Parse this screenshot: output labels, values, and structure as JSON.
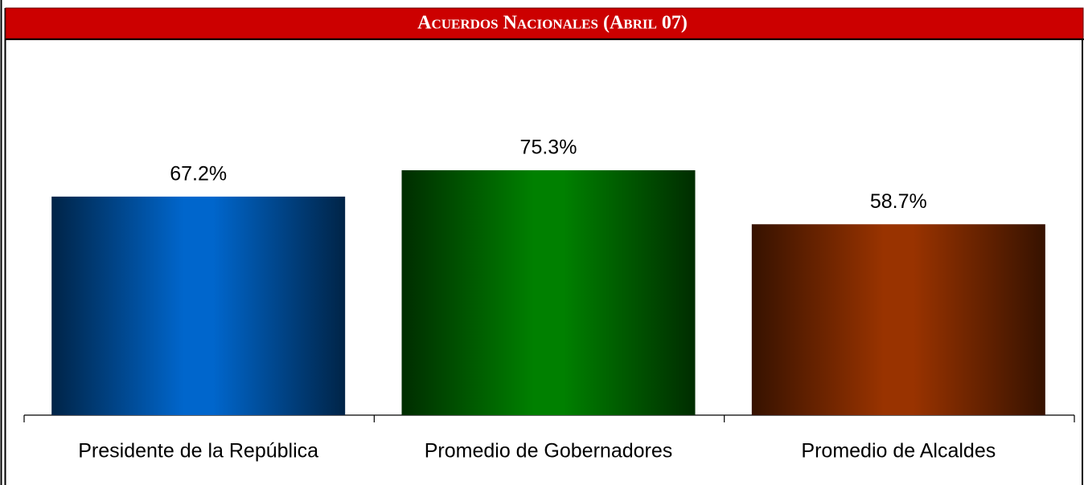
{
  "chart_data": {
    "type": "bar",
    "title": "Acuerdos Nacionales (Abril 07)",
    "categories": [
      "Presidente de la República",
      "Promedio de Gobernadores",
      "Promedio de Alcaldes"
    ],
    "values": [
      67.2,
      75.3,
      58.7
    ],
    "value_labels": [
      "67.2%",
      "75.3%",
      "58.7%"
    ],
    "colors": [
      "#0066cc",
      "#008000",
      "#993300"
    ]
  }
}
